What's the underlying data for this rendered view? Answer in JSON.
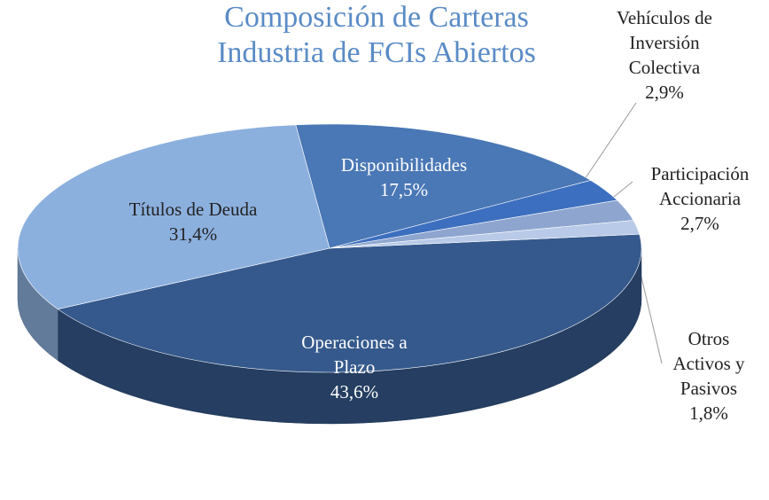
{
  "chart_data": {
    "type": "pie3d",
    "title": "Composición de Carteras Industria de FCIs Abiertos",
    "categories": [
      "Operaciones a Plazo",
      "Títulos de Deuda",
      "Disponibilidades",
      "Vehículos de Inversión Colectiva",
      "Participación Accionaria",
      "Otros Activos y Pasivos"
    ],
    "values": [
      43.6,
      31.4,
      17.5,
      2.9,
      2.7,
      1.8
    ],
    "value_labels": [
      "43,6%",
      "31,4%",
      "17,5%",
      "2,9%",
      "2,7%",
      "1,8%"
    ],
    "colors": [
      "#35598c",
      "#8cb0de",
      "#4a77b5",
      "#3c6fbf",
      "#8ea6cf",
      "#b9cae8"
    ]
  }
}
